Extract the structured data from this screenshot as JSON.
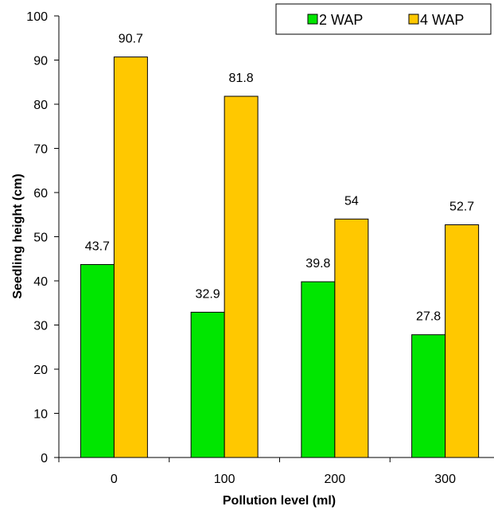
{
  "chart_data": {
    "type": "bar",
    "categories": [
      "0",
      "100",
      "200",
      "300"
    ],
    "series": [
      {
        "name": "2 WAP",
        "color": "#00E600",
        "values": [
          43.7,
          32.9,
          39.8,
          27.8
        ],
        "labels": [
          "43.7",
          "32.9",
          "39.8",
          "27.8"
        ]
      },
      {
        "name": "4 WAP",
        "color": "#FFC800",
        "values": [
          90.7,
          81.8,
          54,
          52.7
        ],
        "labels": [
          "90.7",
          "81.8",
          "54",
          "52.7"
        ]
      }
    ],
    "title": "",
    "xlabel": "Pollution level (ml)",
    "ylabel": "Seedling height (cm)",
    "ylim": [
      0,
      100
    ],
    "yticks": [
      "0",
      "10",
      "20",
      "30",
      "40",
      "50",
      "60",
      "70",
      "80",
      "90",
      "100"
    ],
    "grid": false,
    "legend_position": "top-right"
  }
}
